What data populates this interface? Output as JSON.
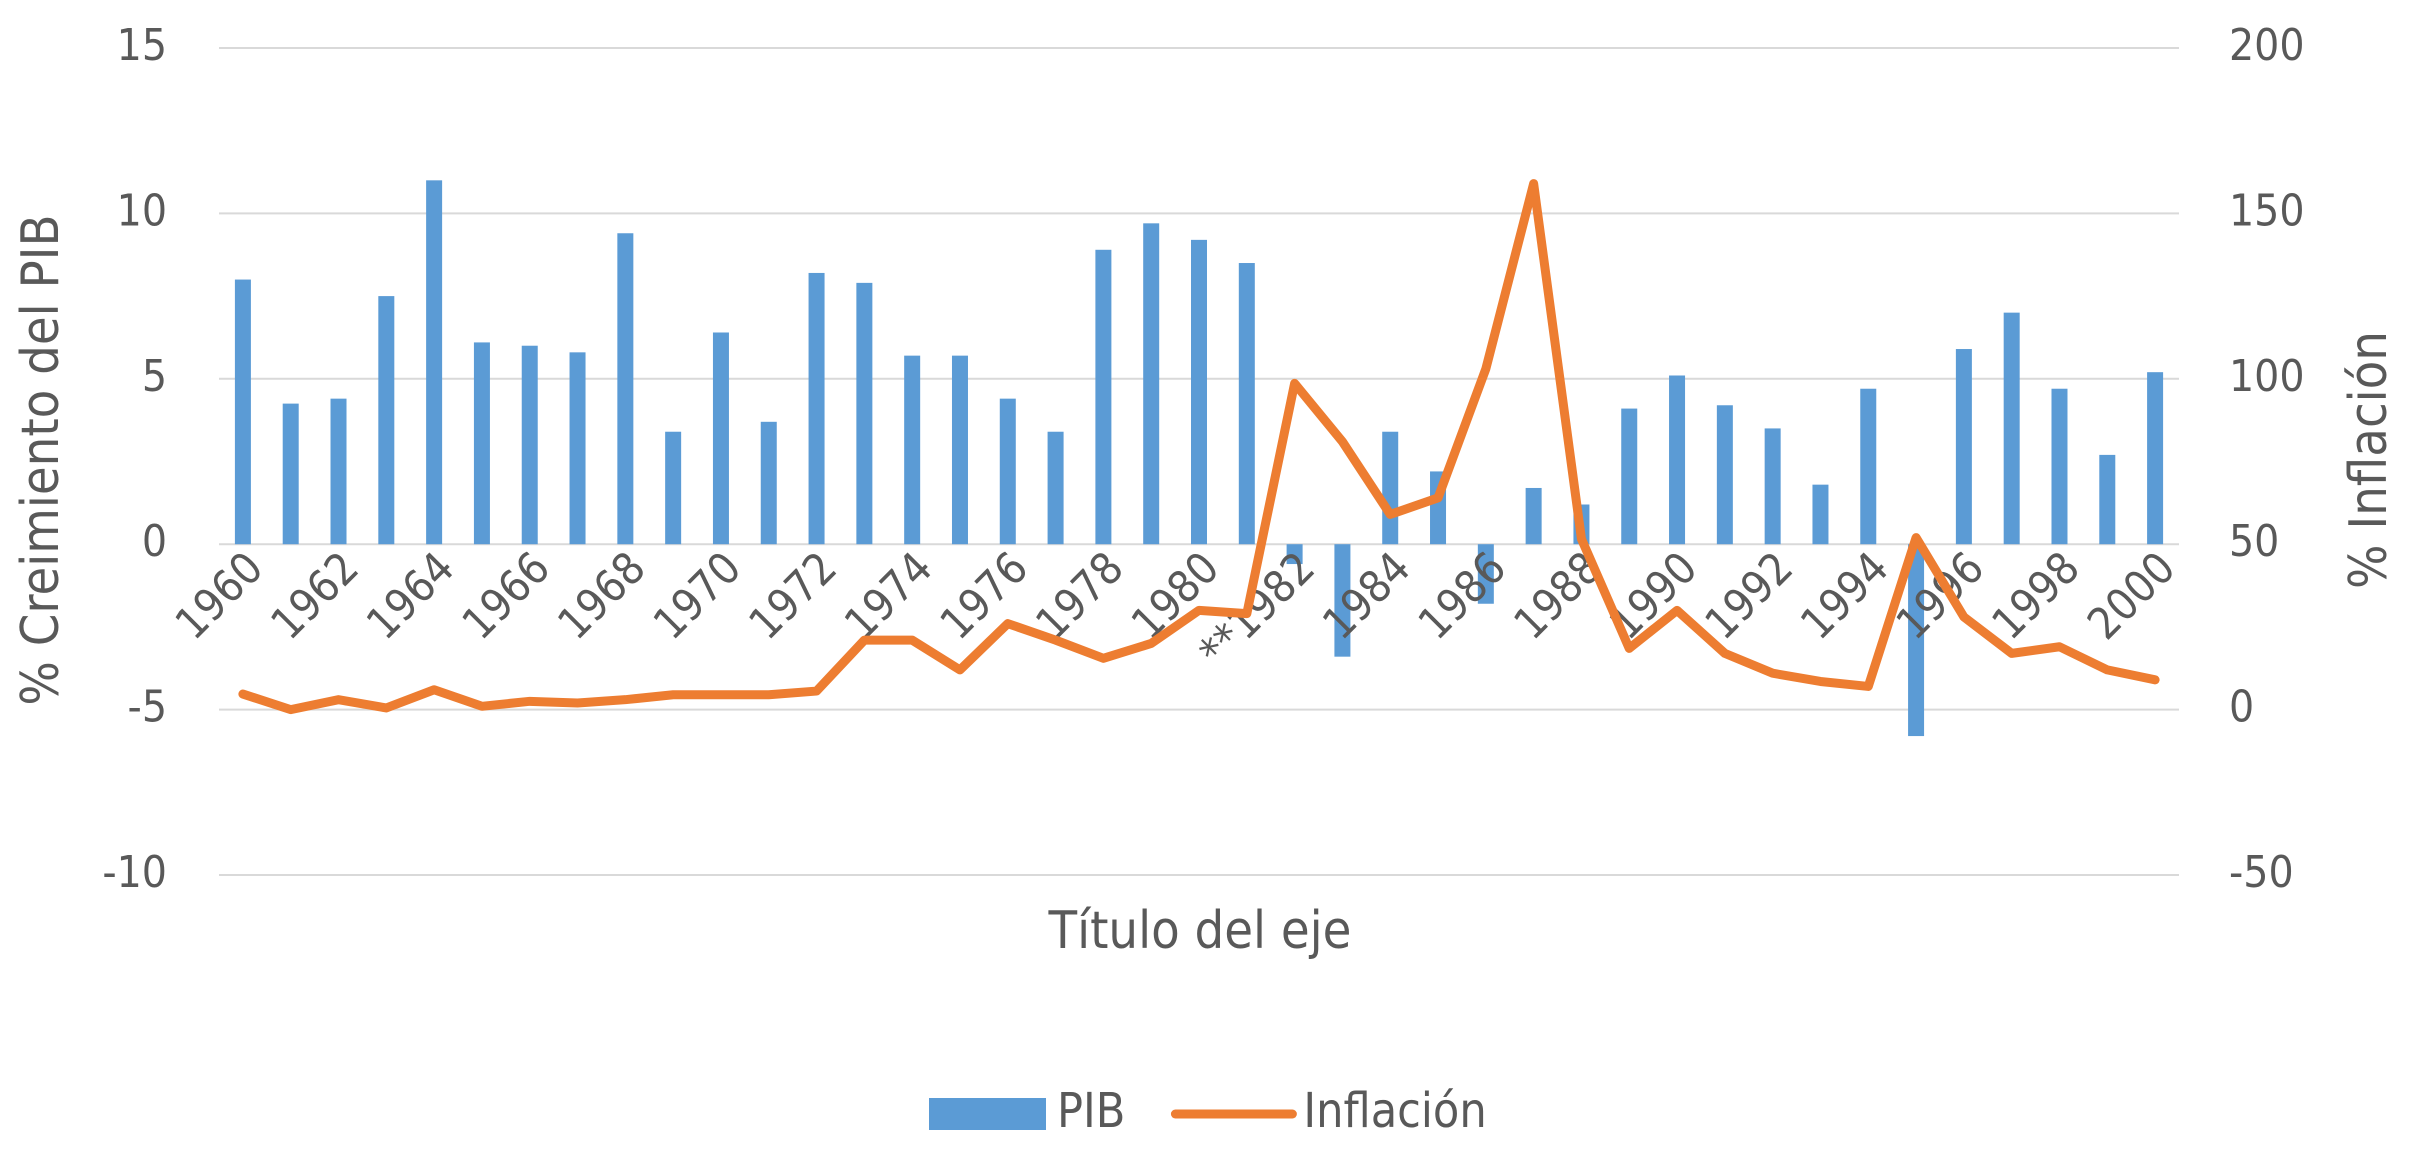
{
  "chart_data": {
    "type": "bar_line",
    "x_label": "Título del eje",
    "y_label": "% Creimiento del PIB",
    "y2_label": "% Inflación",
    "categories": [
      "1960",
      null,
      "1962",
      null,
      "1964",
      null,
      "1966",
      null,
      "1968",
      null,
      "1970",
      null,
      "1972",
      null,
      "1974",
      null,
      "1976",
      null,
      "1978",
      null,
      "1980",
      null,
      "**1982",
      null,
      "1984",
      null,
      "1986",
      null,
      "1988",
      null,
      "1990",
      null,
      "1992",
      null,
      "1994",
      null,
      "1996",
      null,
      "1998",
      null,
      "2000"
    ],
    "series": [
      {
        "name": "PIB",
        "color": "#5b9bd5",
        "kind": "bar",
        "values": [
          8.0,
          4.25,
          4.4,
          7.5,
          11.0,
          6.1,
          6.0,
          5.8,
          9.4,
          3.4,
          6.4,
          3.7,
          8.2,
          7.9,
          5.7,
          5.7,
          4.4,
          3.4,
          8.9,
          9.7,
          9.2,
          8.5,
          -0.6,
          -3.4,
          3.4,
          2.2,
          -1.8,
          1.7,
          1.2,
          4.1,
          5.1,
          4.2,
          3.5,
          1.8,
          4.7,
          -5.8,
          5.9,
          7.0,
          4.7,
          2.7,
          5.2
        ]
      },
      {
        "name": "Inflación",
        "color": "#ed7d31",
        "kind": "line",
        "axis": "y2",
        "values": [
          4.7,
          0,
          3,
          0.5,
          6,
          1,
          2.5,
          2,
          3,
          4.5,
          4.5,
          4.5,
          5.6,
          21,
          21,
          12,
          26,
          21,
          15.5,
          20,
          30,
          29,
          98.6,
          81,
          59,
          64,
          103,
          159,
          51.6,
          18.5,
          30,
          17,
          11,
          8.5,
          7,
          52,
          28,
          17,
          19,
          12,
          9
        ]
      }
    ],
    "ylim": [
      -10,
      15
    ],
    "yticks": [
      -10,
      -5,
      0,
      5,
      10,
      15
    ],
    "y2lim": [
      -50,
      200
    ],
    "y2ticks": [
      -50,
      0,
      50,
      100,
      150,
      200
    ],
    "grid": true,
    "legend": "bottom"
  }
}
